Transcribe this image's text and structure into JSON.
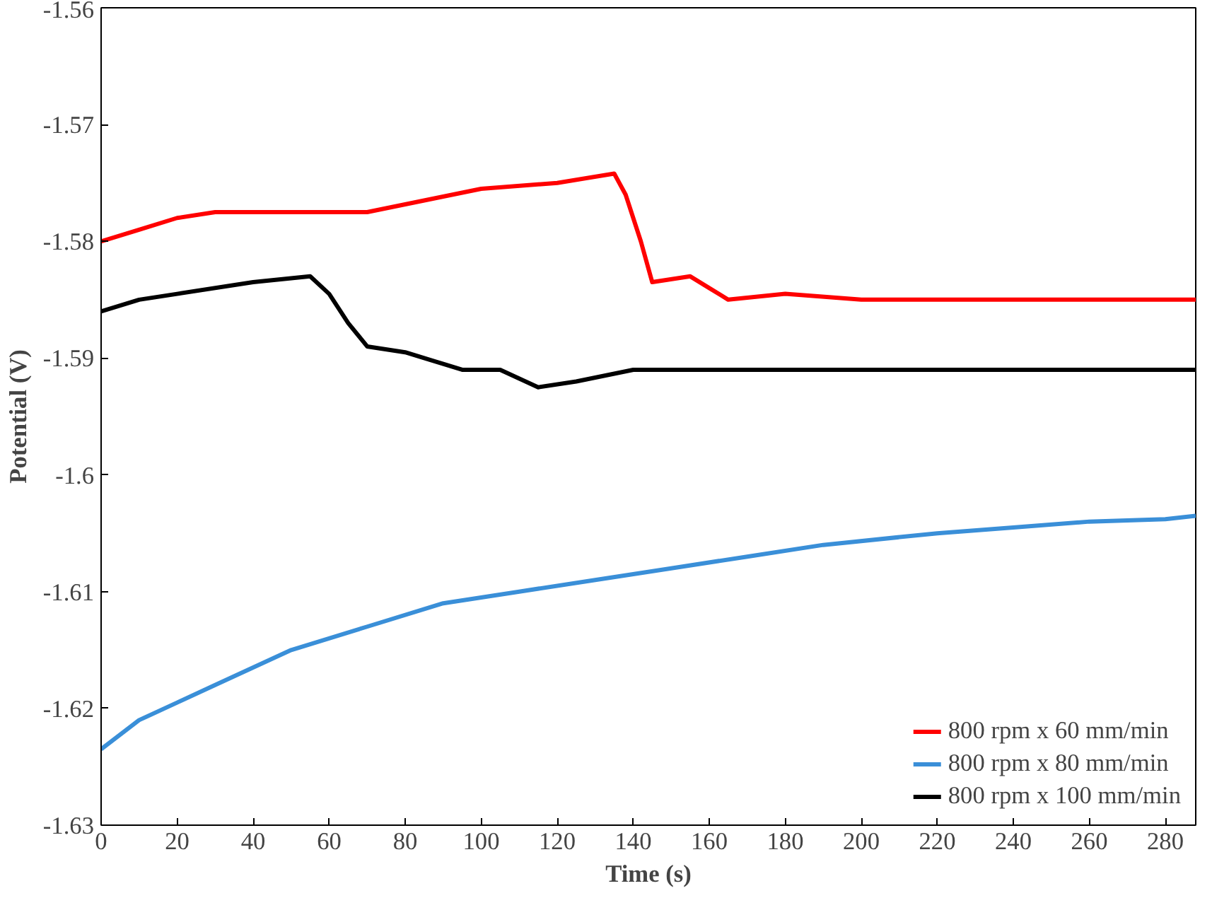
{
  "chart_data": {
    "type": "line",
    "xlabel": "Time (s)",
    "ylabel": "Potential (V)",
    "xlim": [
      0,
      288
    ],
    "xticks": [
      0,
      20,
      40,
      60,
      80,
      100,
      120,
      140,
      160,
      180,
      200,
      220,
      240,
      260,
      280
    ],
    "ylim": [
      -1.63,
      -1.56
    ],
    "yticks": [
      -1.63,
      -1.62,
      -1.61,
      -1.6,
      -1.59,
      -1.58,
      -1.57,
      -1.56
    ],
    "grid": false,
    "legend": "bottom right",
    "line_style": "solid",
    "marker": "none",
    "series": [
      {
        "name": "800 rpm x 60 mm/min",
        "color": "#ff0000",
        "x": [
          0,
          10,
          20,
          30,
          50,
          70,
          85,
          100,
          120,
          135,
          138,
          142,
          145,
          155,
          160,
          165,
          180,
          200,
          240,
          288
        ],
        "values": [
          -1.58,
          -1.579,
          -1.578,
          -1.5775,
          -1.5775,
          -1.5775,
          -1.5765,
          -1.5755,
          -1.575,
          -1.5742,
          -1.576,
          -1.58,
          -1.5835,
          -1.583,
          -1.584,
          -1.585,
          -1.5845,
          -1.585,
          -1.585,
          -1.585
        ]
      },
      {
        "name": "800 rpm x 80 mm/min",
        "color": "#3a8fd8",
        "x": [
          0,
          10,
          20,
          30,
          50,
          70,
          90,
          110,
          130,
          150,
          170,
          190,
          220,
          240,
          260,
          280,
          288
        ],
        "values": [
          -1.6235,
          -1.621,
          -1.6195,
          -1.618,
          -1.615,
          -1.613,
          -1.611,
          -1.61,
          -1.609,
          -1.608,
          -1.607,
          -1.606,
          -1.605,
          -1.6045,
          -1.604,
          -1.6038,
          -1.6035
        ]
      },
      {
        "name": "800 rpm x 100 mm/min",
        "color": "#000000",
        "x": [
          0,
          10,
          20,
          40,
          55,
          60,
          65,
          70,
          80,
          90,
          95,
          105,
          115,
          125,
          140,
          160,
          200,
          240,
          288
        ],
        "values": [
          -1.586,
          -1.585,
          -1.5845,
          -1.5835,
          -1.583,
          -1.5845,
          -1.587,
          -1.589,
          -1.5895,
          -1.5905,
          -1.591,
          -1.591,
          -1.5925,
          -1.592,
          -1.591,
          -1.591,
          -1.591,
          -1.591,
          -1.591
        ]
      }
    ]
  }
}
